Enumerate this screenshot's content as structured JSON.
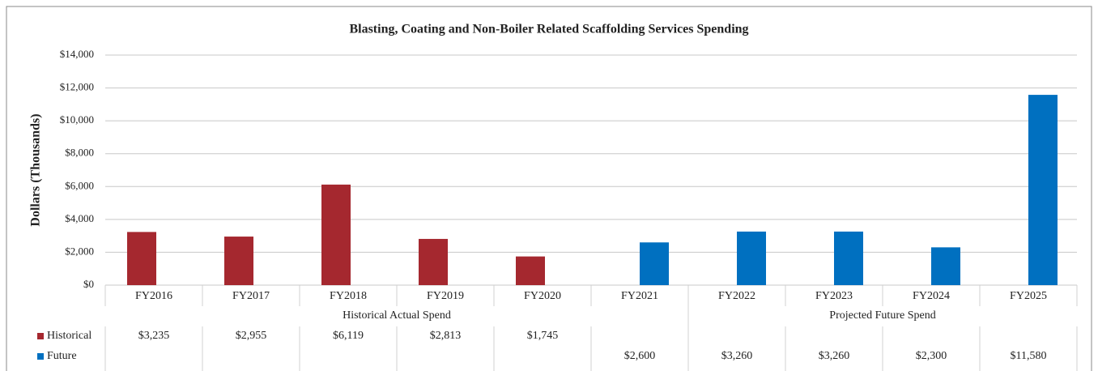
{
  "chart_data": {
    "type": "bar",
    "title": "Blasting, Coating and Non-Boiler Related Scaffolding Services Spending",
    "y_label": "Dollars (Thousands)",
    "categories": [
      "FY2016",
      "FY2017",
      "FY2018",
      "FY2019",
      "FY2020",
      "FY2021",
      "FY2022",
      "FY2023",
      "FY2024",
      "FY2025"
    ],
    "category_groups": [
      "Historical Actual Spend",
      "Projected Future Spend"
    ],
    "series": [
      {
        "name": "Historical",
        "color": "#a5282f",
        "values": [
          3235,
          2955,
          6119,
          2813,
          1745,
          null,
          null,
          null,
          null,
          null
        ],
        "value_labels": [
          "$3,235",
          "$2,955",
          "$6,119",
          "$2,813",
          "$1,745",
          null,
          null,
          null,
          null,
          null
        ]
      },
      {
        "name": "Future",
        "color": "#0070c0",
        "values": [
          null,
          null,
          null,
          null,
          null,
          2600,
          3260,
          3260,
          2300,
          11580
        ],
        "value_labels": [
          null,
          null,
          null,
          null,
          null,
          "$2,600",
          "$3,260",
          "$3,260",
          "$2,300",
          "$11,580"
        ]
      }
    ],
    "ylim": [
      0,
      14000
    ],
    "yticks": [
      {
        "value": 0,
        "label": "$0"
      },
      {
        "value": 2000,
        "label": "$2,000"
      },
      {
        "value": 4000,
        "label": "$4,000"
      },
      {
        "value": 6000,
        "label": "$6,000"
      },
      {
        "value": 8000,
        "label": "$8,000"
      },
      {
        "value": 10000,
        "label": "$10,000"
      },
      {
        "value": 12000,
        "label": "$12,000"
      },
      {
        "value": 14000,
        "label": "$14,000"
      }
    ],
    "grid": true
  }
}
